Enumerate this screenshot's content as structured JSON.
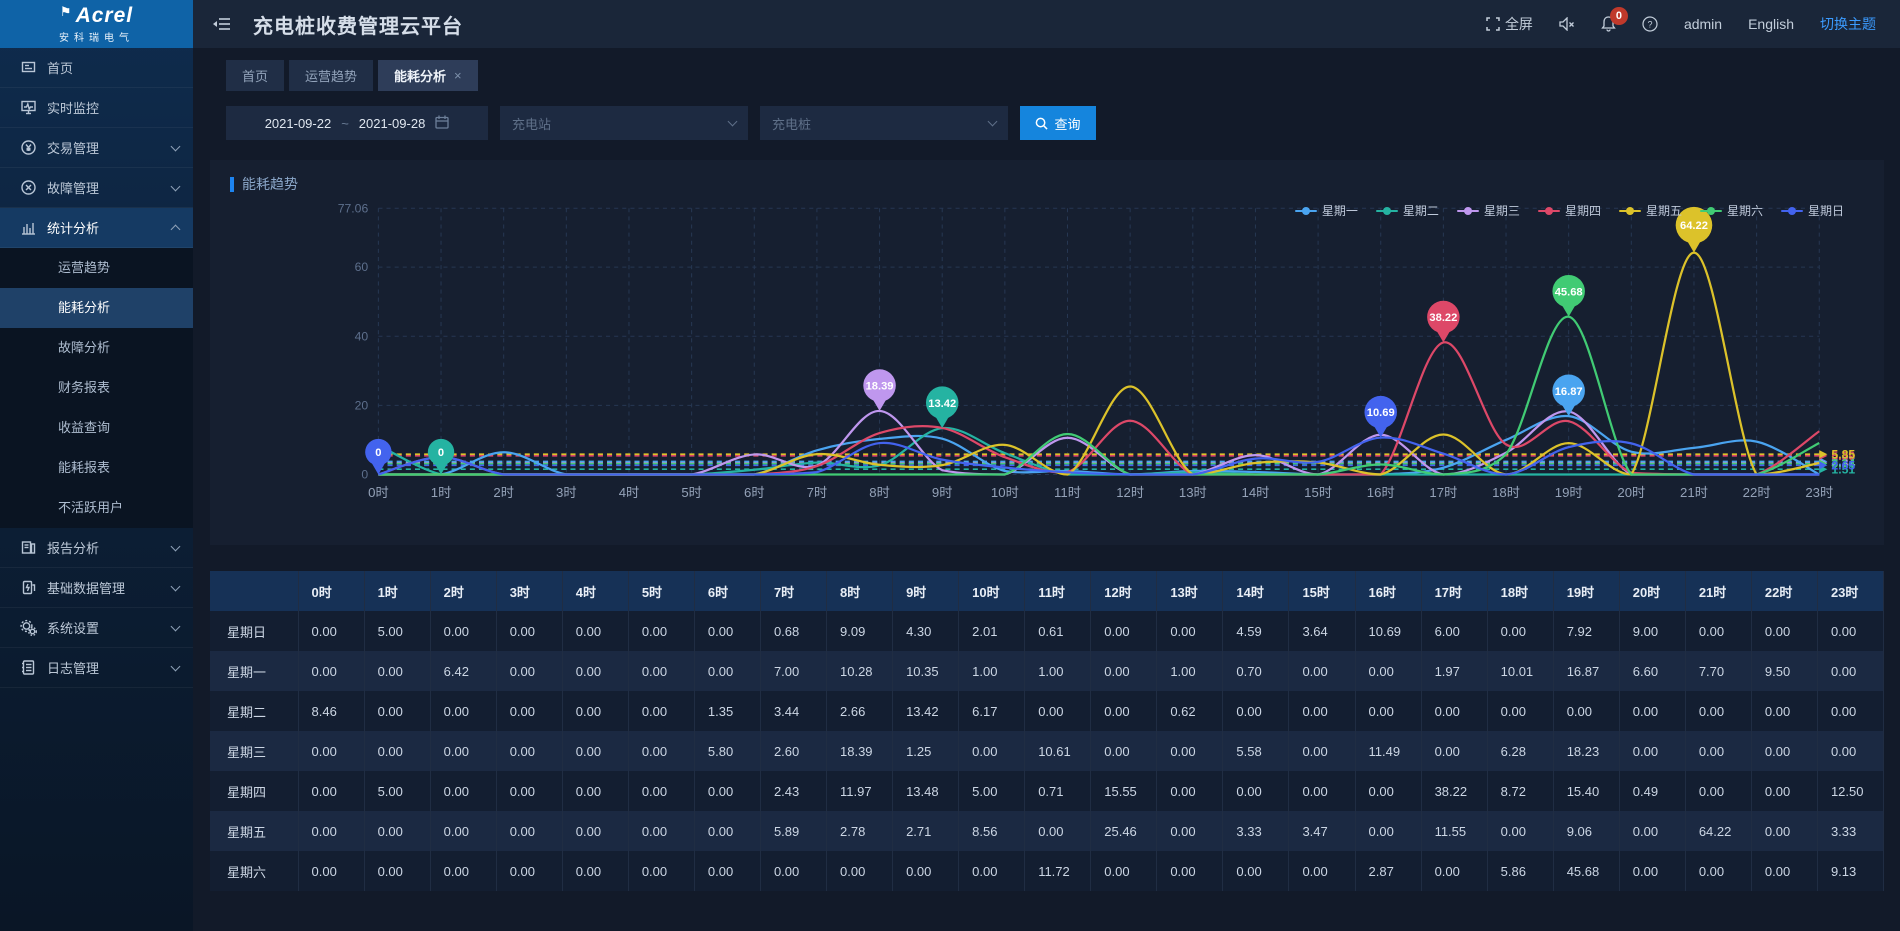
{
  "app": {
    "logo_title": "Acrel",
    "logo_subtitle": "安科瑞电气",
    "title": "充电桩收费管理云平台"
  },
  "header": {
    "fullscreen_label": "全屏",
    "badge_count": "0",
    "username": "admin",
    "language": "English",
    "theme_switch": "切换主题"
  },
  "sidebar": {
    "items": [
      {
        "label": "首页",
        "icon": "home-icon",
        "expandable": false,
        "active": false
      },
      {
        "label": "实时监控",
        "icon": "monitor-icon",
        "expandable": false,
        "active": false
      },
      {
        "label": "交易管理",
        "icon": "trade-icon",
        "expandable": true,
        "active": false
      },
      {
        "label": "故障管理",
        "icon": "fault-icon",
        "expandable": true,
        "active": false
      },
      {
        "label": "统计分析",
        "icon": "stats-icon",
        "expandable": true,
        "active": true,
        "expanded": true,
        "children": [
          "运营趋势",
          "能耗分析",
          "故障分析",
          "财务报表",
          "收益查询",
          "能耗报表",
          "不活跃用户"
        ],
        "active_child": "能耗分析"
      },
      {
        "label": "报告分析",
        "icon": "report-icon",
        "expandable": true,
        "active": false
      },
      {
        "label": "基础数据管理",
        "icon": "basedata-icon",
        "expandable": true,
        "active": false
      },
      {
        "label": "系统设置",
        "icon": "settings-icon",
        "expandable": true,
        "active": false
      },
      {
        "label": "日志管理",
        "icon": "log-icon",
        "expandable": true,
        "active": false
      }
    ]
  },
  "tabs": [
    {
      "label": "首页",
      "active": false,
      "closable": false
    },
    {
      "label": "运营趋势",
      "active": false,
      "closable": false
    },
    {
      "label": "能耗分析",
      "active": true,
      "closable": true
    }
  ],
  "filters": {
    "date_start": "2021-09-22",
    "date_separator": "~",
    "date_end": "2021-09-28",
    "station_placeholder": "充电站",
    "pile_placeholder": "充电桩",
    "search_label": "查询"
  },
  "panel": {
    "title": "能耗趋势"
  },
  "chart_data": {
    "type": "line",
    "title": "能耗趋势",
    "x_labels": [
      "0时",
      "1时",
      "2时",
      "3时",
      "4时",
      "5时",
      "6时",
      "7时",
      "8时",
      "9时",
      "10时",
      "11时",
      "12时",
      "13时",
      "14时",
      "15时",
      "16时",
      "17时",
      "18时",
      "19时",
      "20时",
      "21时",
      "22时",
      "23时"
    ],
    "y_ticks": [
      0,
      20,
      40,
      60,
      77.06
    ],
    "y_max": 77.06,
    "grid": "dashed",
    "legend_position": "top-right",
    "smooth": true,
    "series": [
      {
        "name": "星期一",
        "color": "#4aa4f0",
        "avg": 3.77,
        "values": [
          0,
          0,
          6.42,
          0,
          0,
          0,
          0,
          7.0,
          10.28,
          10.35,
          1.0,
          1.0,
          0,
          1.0,
          0.7,
          0,
          0,
          1.97,
          10.01,
          16.87,
          6.6,
          7.7,
          9.5,
          0
        ]
      },
      {
        "name": "星期二",
        "color": "#25b3a2",
        "avg": 1.51,
        "values": [
          8.46,
          0,
          0,
          0,
          0,
          0,
          1.35,
          3.44,
          2.66,
          13.42,
          6.17,
          0,
          0,
          0.62,
          0,
          0,
          0,
          0,
          0,
          0,
          0,
          0,
          0,
          0
        ]
      },
      {
        "name": "星期三",
        "color": "#bf97ee",
        "avg": 3.34,
        "values": [
          0,
          0,
          0,
          0,
          0,
          0,
          5.8,
          2.6,
          18.39,
          1.25,
          0,
          10.61,
          0,
          0,
          5.58,
          0,
          11.49,
          0,
          6.28,
          18.23,
          0,
          0,
          0,
          0
        ]
      },
      {
        "name": "星期四",
        "color": "#dd4868",
        "avg": 5.39,
        "values": [
          0,
          5.0,
          0,
          0,
          0,
          0,
          0,
          2.43,
          11.97,
          13.48,
          5.0,
          0.71,
          15.55,
          0,
          0,
          0,
          0,
          38.22,
          8.72,
          15.4,
          0.49,
          0,
          0,
          12.5
        ]
      },
      {
        "name": "星期五",
        "color": "#dcc22a",
        "avg": 5.85,
        "values": [
          0,
          0,
          0,
          0,
          0,
          0,
          0,
          5.89,
          2.78,
          2.71,
          8.56,
          0,
          25.46,
          0,
          3.33,
          3.47,
          0,
          11.55,
          0,
          9.06,
          0,
          64.22,
          0,
          3.33
        ]
      },
      {
        "name": "星期六",
        "color": "#41cb74",
        "avg": 3.14,
        "values": [
          0,
          0,
          0,
          0,
          0,
          0,
          0,
          0,
          0,
          0,
          0,
          11.72,
          0,
          0,
          0,
          0,
          2.87,
          0,
          5.86,
          45.68,
          0,
          0,
          0,
          9.13
        ]
      },
      {
        "name": "星期日",
        "color": "#4363ee",
        "avg": 2.65,
        "values": [
          0,
          5.0,
          0,
          0,
          0,
          0,
          0,
          0.68,
          9.09,
          4.3,
          2.01,
          0.61,
          0,
          0,
          4.59,
          3.64,
          10.69,
          6.0,
          0,
          7.92,
          9.0,
          0,
          0,
          0
        ]
      }
    ],
    "pins": [
      {
        "series": "星期日",
        "hour": 0,
        "value": 0,
        "label": "0"
      },
      {
        "series": "星期二",
        "hour": 1,
        "value": 0,
        "label": "0"
      },
      {
        "series": "星期三",
        "hour": 8,
        "value": 18.39,
        "label": "18.39"
      },
      {
        "series": "星期二",
        "hour": 9,
        "value": 13.42,
        "label": "13.42"
      },
      {
        "series": "星期日",
        "hour": 16,
        "value": 10.69,
        "label": "10.69"
      },
      {
        "series": "星期四",
        "hour": 17,
        "value": 38.22,
        "label": "38.22"
      },
      {
        "series": "星期一",
        "hour": 19,
        "value": 16.87,
        "label": "16.87"
      },
      {
        "series": "星期六",
        "hour": 19,
        "value": 45.68,
        "label": "45.68"
      },
      {
        "series": "星期五",
        "hour": 21,
        "value": 64.22,
        "label": "64.22"
      }
    ]
  },
  "table": {
    "columns": [
      "",
      "0时",
      "1时",
      "2时",
      "3时",
      "4时",
      "5时",
      "6时",
      "7时",
      "8时",
      "9时",
      "10时",
      "11时",
      "12时",
      "13时",
      "14时",
      "15时",
      "16时",
      "17时",
      "18时",
      "19时",
      "20时",
      "21时",
      "22时",
      "23时"
    ],
    "rows": [
      {
        "label": "星期日",
        "values": [
          "0.00",
          "5.00",
          "0.00",
          "0.00",
          "0.00",
          "0.00",
          "0.00",
          "0.68",
          "9.09",
          "4.30",
          "2.01",
          "0.61",
          "0.00",
          "0.00",
          "4.59",
          "3.64",
          "10.69",
          "6.00",
          "0.00",
          "7.92",
          "9.00",
          "0.00",
          "0.00",
          "0.00"
        ]
      },
      {
        "label": "星期一",
        "values": [
          "0.00",
          "0.00",
          "6.42",
          "0.00",
          "0.00",
          "0.00",
          "0.00",
          "7.00",
          "10.28",
          "10.35",
          "1.00",
          "1.00",
          "0.00",
          "1.00",
          "0.70",
          "0.00",
          "0.00",
          "1.97",
          "10.01",
          "16.87",
          "6.60",
          "7.70",
          "9.50",
          "0.00"
        ]
      },
      {
        "label": "星期二",
        "values": [
          "8.46",
          "0.00",
          "0.00",
          "0.00",
          "0.00",
          "0.00",
          "1.35",
          "3.44",
          "2.66",
          "13.42",
          "6.17",
          "0.00",
          "0.00",
          "0.62",
          "0.00",
          "0.00",
          "0.00",
          "0.00",
          "0.00",
          "0.00",
          "0.00",
          "0.00",
          "0.00",
          "0.00"
        ]
      },
      {
        "label": "星期三",
        "values": [
          "0.00",
          "0.00",
          "0.00",
          "0.00",
          "0.00",
          "0.00",
          "5.80",
          "2.60",
          "18.39",
          "1.25",
          "0.00",
          "10.61",
          "0.00",
          "0.00",
          "5.58",
          "0.00",
          "11.49",
          "0.00",
          "6.28",
          "18.23",
          "0.00",
          "0.00",
          "0.00",
          "0.00"
        ]
      },
      {
        "label": "星期四",
        "values": [
          "0.00",
          "5.00",
          "0.00",
          "0.00",
          "0.00",
          "0.00",
          "0.00",
          "2.43",
          "11.97",
          "13.48",
          "5.00",
          "0.71",
          "15.55",
          "0.00",
          "0.00",
          "0.00",
          "0.00",
          "38.22",
          "8.72",
          "15.40",
          "0.49",
          "0.00",
          "0.00",
          "12.50"
        ]
      },
      {
        "label": "星期五",
        "values": [
          "0.00",
          "0.00",
          "0.00",
          "0.00",
          "0.00",
          "0.00",
          "0.00",
          "5.89",
          "2.78",
          "2.71",
          "8.56",
          "0.00",
          "25.46",
          "0.00",
          "3.33",
          "3.47",
          "0.00",
          "11.55",
          "0.00",
          "9.06",
          "0.00",
          "64.22",
          "0.00",
          "3.33"
        ]
      },
      {
        "label": "星期六",
        "values": [
          "0.00",
          "0.00",
          "0.00",
          "0.00",
          "0.00",
          "0.00",
          "0.00",
          "0.00",
          "0.00",
          "0.00",
          "0.00",
          "11.72",
          "0.00",
          "0.00",
          "0.00",
          "0.00",
          "2.87",
          "0.00",
          "5.86",
          "45.68",
          "0.00",
          "0.00",
          "0.00",
          "9.13"
        ]
      }
    ]
  }
}
